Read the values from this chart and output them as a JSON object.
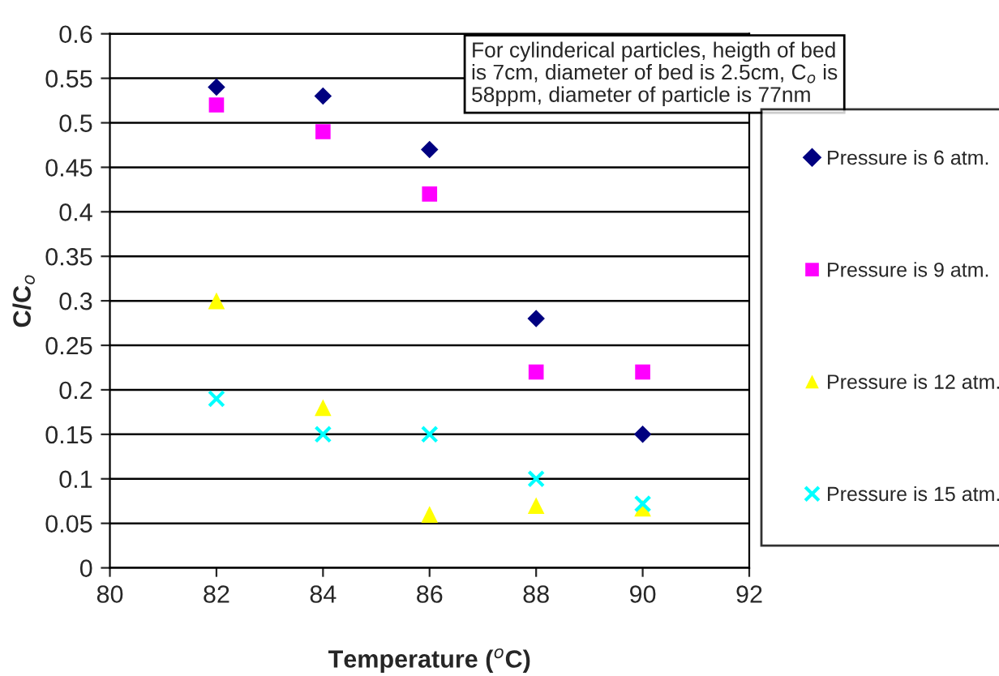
{
  "chart_data": {
    "type": "scatter",
    "xlabel": "Temperature ($^{o}$C)",
    "ylabel": "C/C$_{o}$",
    "x": [
      82,
      84,
      86,
      88,
      90
    ],
    "series": [
      {
        "name": "Pressure is 6 atm.",
        "color": "#000080",
        "marker": "diamond",
        "values": [
          0.54,
          0.53,
          0.47,
          0.28,
          0.15
        ]
      },
      {
        "name": "Pressure is 9 atm.",
        "color": "#ff00ff",
        "marker": "square",
        "values": [
          0.52,
          0.49,
          0.42,
          0.22,
          0.22
        ]
      },
      {
        "name": "Pressure is 12 atm.",
        "color": "#ffff00",
        "marker": "triangle",
        "values": [
          0.3,
          0.18,
          0.06,
          0.07,
          0.067
        ]
      },
      {
        "name": "Pressure is 15 atm.",
        "color": "#00ffff",
        "marker": "cross",
        "values": [
          0.19,
          0.15,
          0.15,
          0.1,
          0.072
        ]
      }
    ],
    "xlim": [
      80,
      92
    ],
    "xticks": [
      80,
      82,
      84,
      86,
      88,
      90,
      92
    ],
    "ylim": [
      0,
      0.6
    ],
    "yticks": [
      0,
      0.05,
      0.1,
      0.15,
      0.2,
      0.25,
      0.3,
      0.35,
      0.4,
      0.45,
      0.5,
      0.55,
      0.6
    ],
    "grid": "y",
    "legend": "right",
    "annotations": [
      "For cylinderical particles, heigth of bed is 7cm, diameter of bed is 2.5cm, C$_{o}$ is 58ppm, diameter of particle is 77nm"
    ]
  }
}
